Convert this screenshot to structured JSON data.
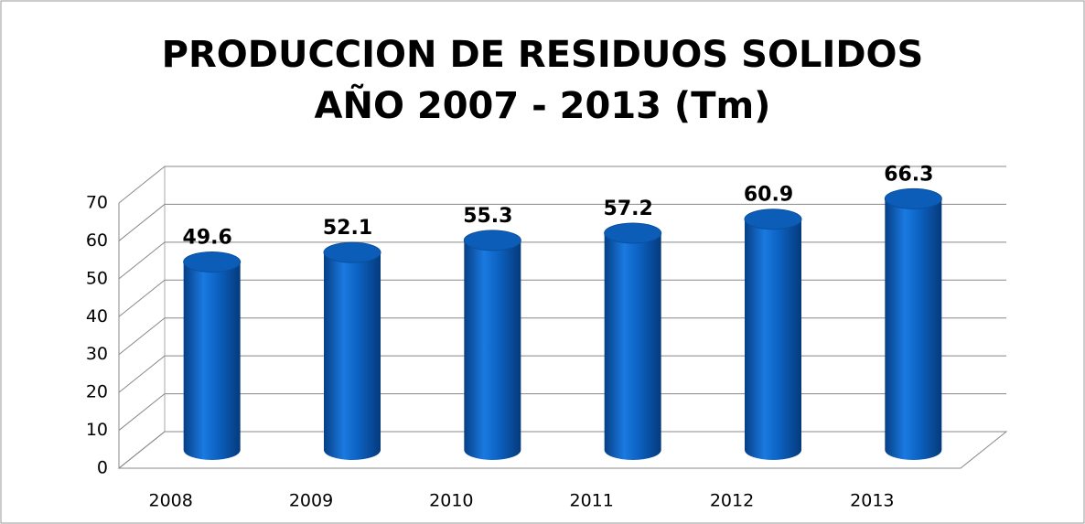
{
  "chart_data": {
    "type": "bar3d",
    "title": "PRODUCCION DE RESIDUOS SOLIDOS",
    "subtitle": "AÑO 2007 - 2013  (Tm)",
    "categories": [
      "2008",
      "2009",
      "2010",
      "2011",
      "2012",
      "2013"
    ],
    "values": [
      49.6,
      52.1,
      55.3,
      57.2,
      60.9,
      66.3
    ],
    "color": "#0a64c0",
    "ylim": [
      0,
      70
    ],
    "yticks": [
      0,
      10,
      20,
      30,
      40,
      50,
      60,
      70
    ],
    "grid": true
  }
}
